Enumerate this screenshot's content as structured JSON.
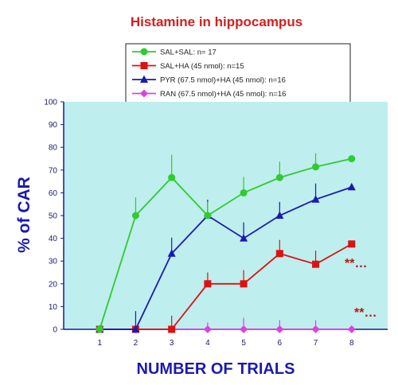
{
  "colors": {
    "plot_bg": "#bfeeee",
    "axis": "#1a1a8e",
    "title": "#d22020",
    "axis_title": "#1a1ab0",
    "sig": "#b01818"
  },
  "chart_data": {
    "type": "line",
    "title": "Histamine in hippocampus",
    "xlabel": "NUMBER OF TRIALS",
    "ylabel": "% of CAR",
    "x": [
      1,
      2,
      3,
      4,
      5,
      6,
      7,
      8
    ],
    "xlim": [
      0,
      9
    ],
    "ylim": [
      0,
      100
    ],
    "yticks": [
      0,
      10,
      20,
      30,
      40,
      50,
      60,
      70,
      80,
      90,
      100
    ],
    "grid": false,
    "legend_position": "top",
    "series": [
      {
        "name": "SAL+SAL: n= 17",
        "color": "#2ecc2e",
        "marker": "circle",
        "values": [
          0,
          50,
          66.7,
          50,
          60,
          66.7,
          71.4,
          75
        ],
        "errors": [
          0,
          8,
          10,
          6,
          7,
          7,
          6,
          0
        ]
      },
      {
        "name": "SAL+HA (45 nmol): n=15",
        "color": "#dd1111",
        "marker": "square",
        "values": [
          0,
          0,
          0,
          20,
          20,
          33.3,
          28.6,
          37.5
        ],
        "errors": [
          0,
          0,
          6,
          5,
          6,
          6,
          6,
          0
        ]
      },
      {
        "name": "PYR (67.5 nmol)+HA  (45 nmol): n=16",
        "color": "#1a1ab4",
        "marker": "triangle",
        "values": [
          0,
          0,
          33.3,
          50,
          40,
          50,
          57.1,
          62.5
        ],
        "errors": [
          0,
          8,
          7,
          7,
          7,
          6,
          7,
          0
        ]
      },
      {
        "name": "RAN (67.5 nmol)+HA (45 nmol): n=16",
        "color": "#e040e0",
        "marker": "diamond",
        "values": [
          0,
          0,
          0,
          0,
          0,
          0,
          0,
          0
        ],
        "errors": [
          0,
          0,
          0,
          3,
          5,
          4,
          4,
          0
        ]
      }
    ],
    "annotations": [
      "**…",
      "**…"
    ]
  }
}
